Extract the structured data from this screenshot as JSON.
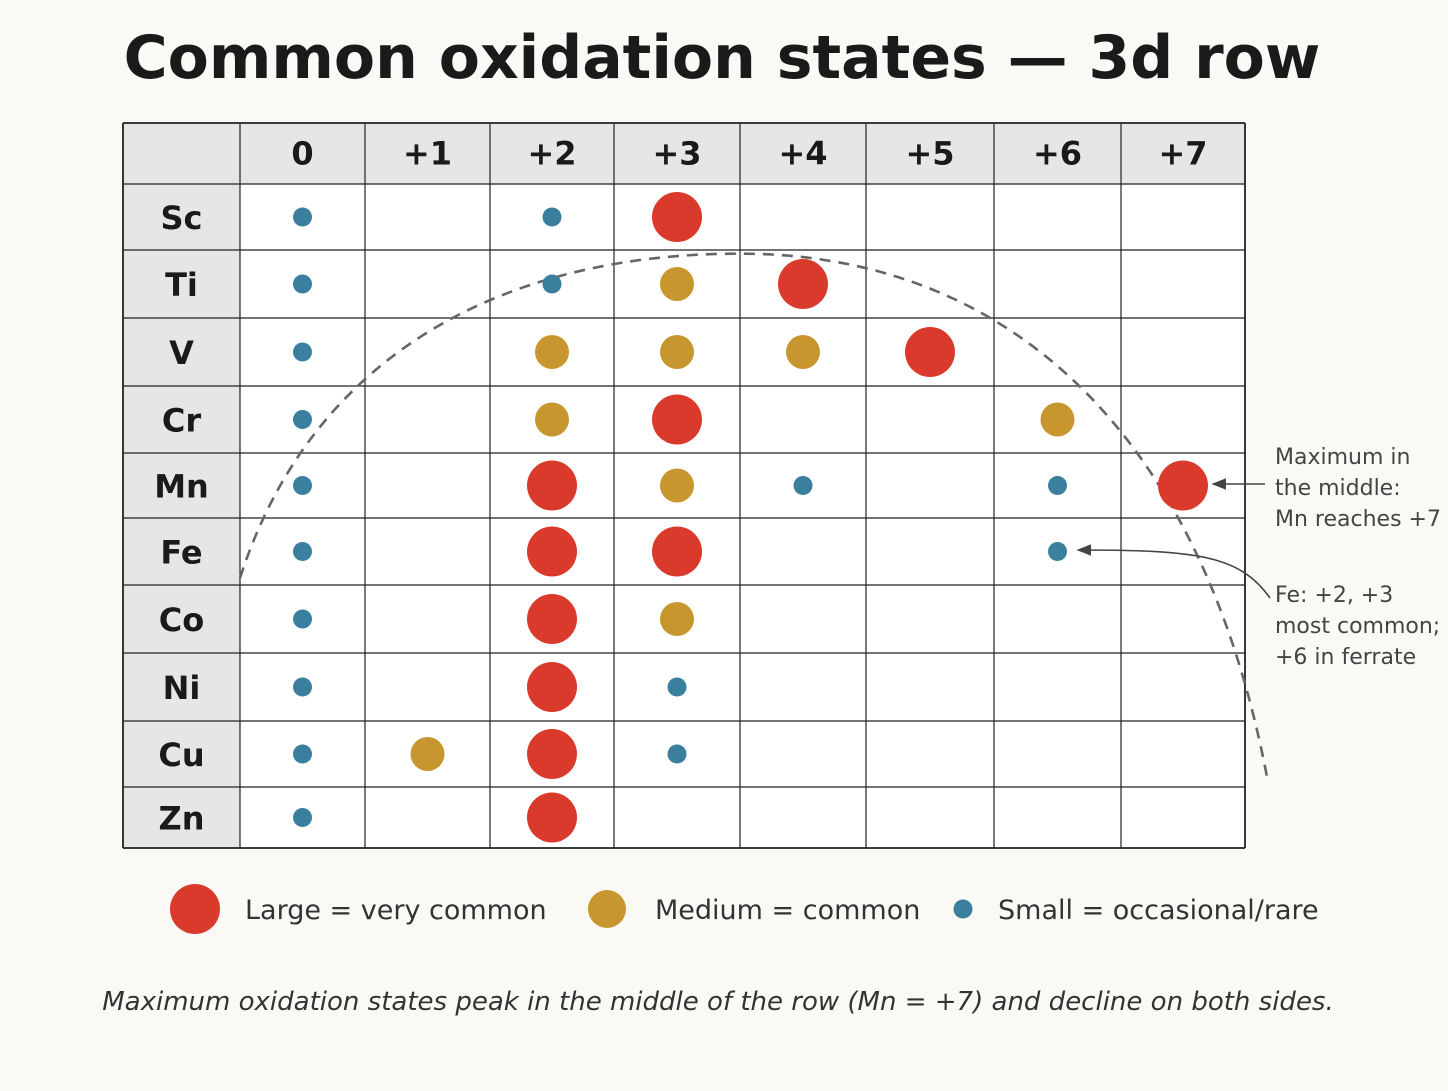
{
  "chart_data": {
    "type": "scatter",
    "title": "Common oxidation states — 3d row",
    "columns": [
      "0",
      "+1",
      "+2",
      "+3",
      "+4",
      "+5",
      "+6",
      "+7"
    ],
    "rows": [
      "Sc",
      "Ti",
      "V",
      "Cr",
      "Mn",
      "Fe",
      "Co",
      "Ni",
      "Cu",
      "Zn"
    ],
    "size_scale": {
      "large": 3,
      "medium": 2,
      "small": 1
    },
    "points": [
      {
        "element": "Sc",
        "state": "0",
        "frequency": 1
      },
      {
        "element": "Sc",
        "state": "+2",
        "frequency": 1
      },
      {
        "element": "Sc",
        "state": "+3",
        "frequency": 3
      },
      {
        "element": "Ti",
        "state": "0",
        "frequency": 1
      },
      {
        "element": "Ti",
        "state": "+2",
        "frequency": 1
      },
      {
        "element": "Ti",
        "state": "+3",
        "frequency": 2
      },
      {
        "element": "Ti",
        "state": "+4",
        "frequency": 3
      },
      {
        "element": "V",
        "state": "0",
        "frequency": 1
      },
      {
        "element": "V",
        "state": "+2",
        "frequency": 2
      },
      {
        "element": "V",
        "state": "+3",
        "frequency": 2
      },
      {
        "element": "V",
        "state": "+4",
        "frequency": 2
      },
      {
        "element": "V",
        "state": "+5",
        "frequency": 3
      },
      {
        "element": "Cr",
        "state": "0",
        "frequency": 1
      },
      {
        "element": "Cr",
        "state": "+2",
        "frequency": 2
      },
      {
        "element": "Cr",
        "state": "+3",
        "frequency": 3
      },
      {
        "element": "Cr",
        "state": "+6",
        "frequency": 2
      },
      {
        "element": "Mn",
        "state": "0",
        "frequency": 1
      },
      {
        "element": "Mn",
        "state": "+2",
        "frequency": 3
      },
      {
        "element": "Mn",
        "state": "+3",
        "frequency": 2
      },
      {
        "element": "Mn",
        "state": "+4",
        "frequency": 1
      },
      {
        "element": "Mn",
        "state": "+6",
        "frequency": 1
      },
      {
        "element": "Mn",
        "state": "+7",
        "frequency": 3
      },
      {
        "element": "Fe",
        "state": "0",
        "frequency": 1
      },
      {
        "element": "Fe",
        "state": "+2",
        "frequency": 3
      },
      {
        "element": "Fe",
        "state": "+3",
        "frequency": 3
      },
      {
        "element": "Fe",
        "state": "+6",
        "frequency": 1
      },
      {
        "element": "Co",
        "state": "0",
        "frequency": 1
      },
      {
        "element": "Co",
        "state": "+2",
        "frequency": 3
      },
      {
        "element": "Co",
        "state": "+3",
        "frequency": 2
      },
      {
        "element": "Ni",
        "state": "0",
        "frequency": 1
      },
      {
        "element": "Ni",
        "state": "+2",
        "frequency": 3
      },
      {
        "element": "Ni",
        "state": "+3",
        "frequency": 1
      },
      {
        "element": "Cu",
        "state": "0",
        "frequency": 1
      },
      {
        "element": "Cu",
        "state": "+1",
        "frequency": 2
      },
      {
        "element": "Cu",
        "state": "+2",
        "frequency": 3
      },
      {
        "element": "Cu",
        "state": "+3",
        "frequency": 1
      },
      {
        "element": "Zn",
        "state": "0",
        "frequency": 1
      },
      {
        "element": "Zn",
        "state": "+2",
        "frequency": 3
      }
    ],
    "colors": {
      "large": "#d93a2b",
      "medium": "#c8962e",
      "small": "#3a7f9e",
      "grid": "#222222",
      "header_fill": "#e6e6e6",
      "curve": "#666666"
    },
    "legend": [
      {
        "key": "large",
        "label": "Large = very common"
      },
      {
        "key": "medium",
        "label": "Medium = common"
      },
      {
        "key": "small",
        "label": "Small = occasional/rare"
      }
    ],
    "annotations": [
      {
        "element": "Mn",
        "state": "+7",
        "lines": [
          "Maximum in",
          "the middle:",
          "Mn reaches +7"
        ]
      },
      {
        "element": "Fe",
        "state": "+6",
        "lines": [
          "Fe: +2, +3",
          "most common;",
          "+6 in ferrate"
        ]
      }
    ],
    "caption": "Maximum oxidation states peak in the middle of the row (Mn = +7) and decline on both sides.",
    "grid": true,
    "trend_curve": "dashed arc peaking at the middle of the row"
  }
}
